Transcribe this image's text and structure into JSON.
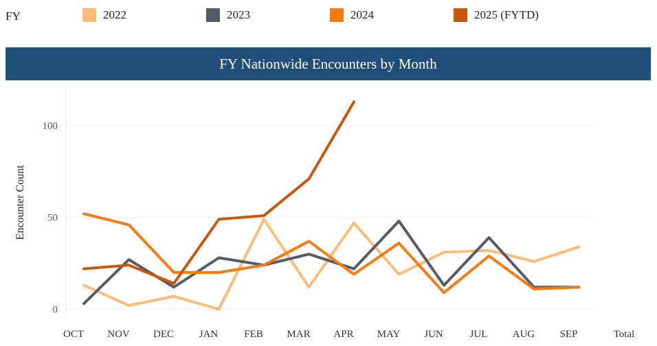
{
  "legend": {
    "title": "FY",
    "items": [
      {
        "label": "2022",
        "color": "#fdbb7a"
      },
      {
        "label": "2023",
        "color": "#555b66"
      },
      {
        "label": "2024",
        "color": "#f47a12"
      },
      {
        "label": "2025 (FYTD)",
        "color": "#c8570b"
      }
    ]
  },
  "chart_data": {
    "type": "line",
    "title": "FY Nationwide Encounters by Month",
    "xlabel": "",
    "ylabel": "Encounter Count",
    "categories": [
      "OCT",
      "NOV",
      "DEC",
      "JAN",
      "FEB",
      "MAR",
      "APR",
      "MAY",
      "JUN",
      "JUL",
      "AUG",
      "SEP"
    ],
    "extra_category": "Total",
    "yticks": [
      0,
      50,
      100
    ],
    "ylim": [
      -4,
      121
    ],
    "grid": "horizontal",
    "legend_position": "top",
    "series": [
      {
        "name": "2022",
        "color": "#fdbb7a",
        "values": [
          13,
          2,
          7,
          0,
          49,
          12,
          47,
          19,
          31,
          32,
          26,
          34
        ]
      },
      {
        "name": "2023",
        "color": "#555b66",
        "values": [
          3,
          27,
          12,
          28,
          24,
          30,
          22,
          48,
          13,
          39,
          12,
          12
        ]
      },
      {
        "name": "2024",
        "color": "#f47a12",
        "values": [
          52,
          46,
          20,
          20,
          24,
          37,
          19,
          36,
          9,
          29,
          11,
          12
        ]
      },
      {
        "name": "2025 (FYTD)",
        "color": "#c8570b",
        "values": [
          22,
          24,
          14,
          49,
          51,
          71,
          113,
          null,
          null,
          null,
          null,
          null
        ]
      }
    ]
  }
}
